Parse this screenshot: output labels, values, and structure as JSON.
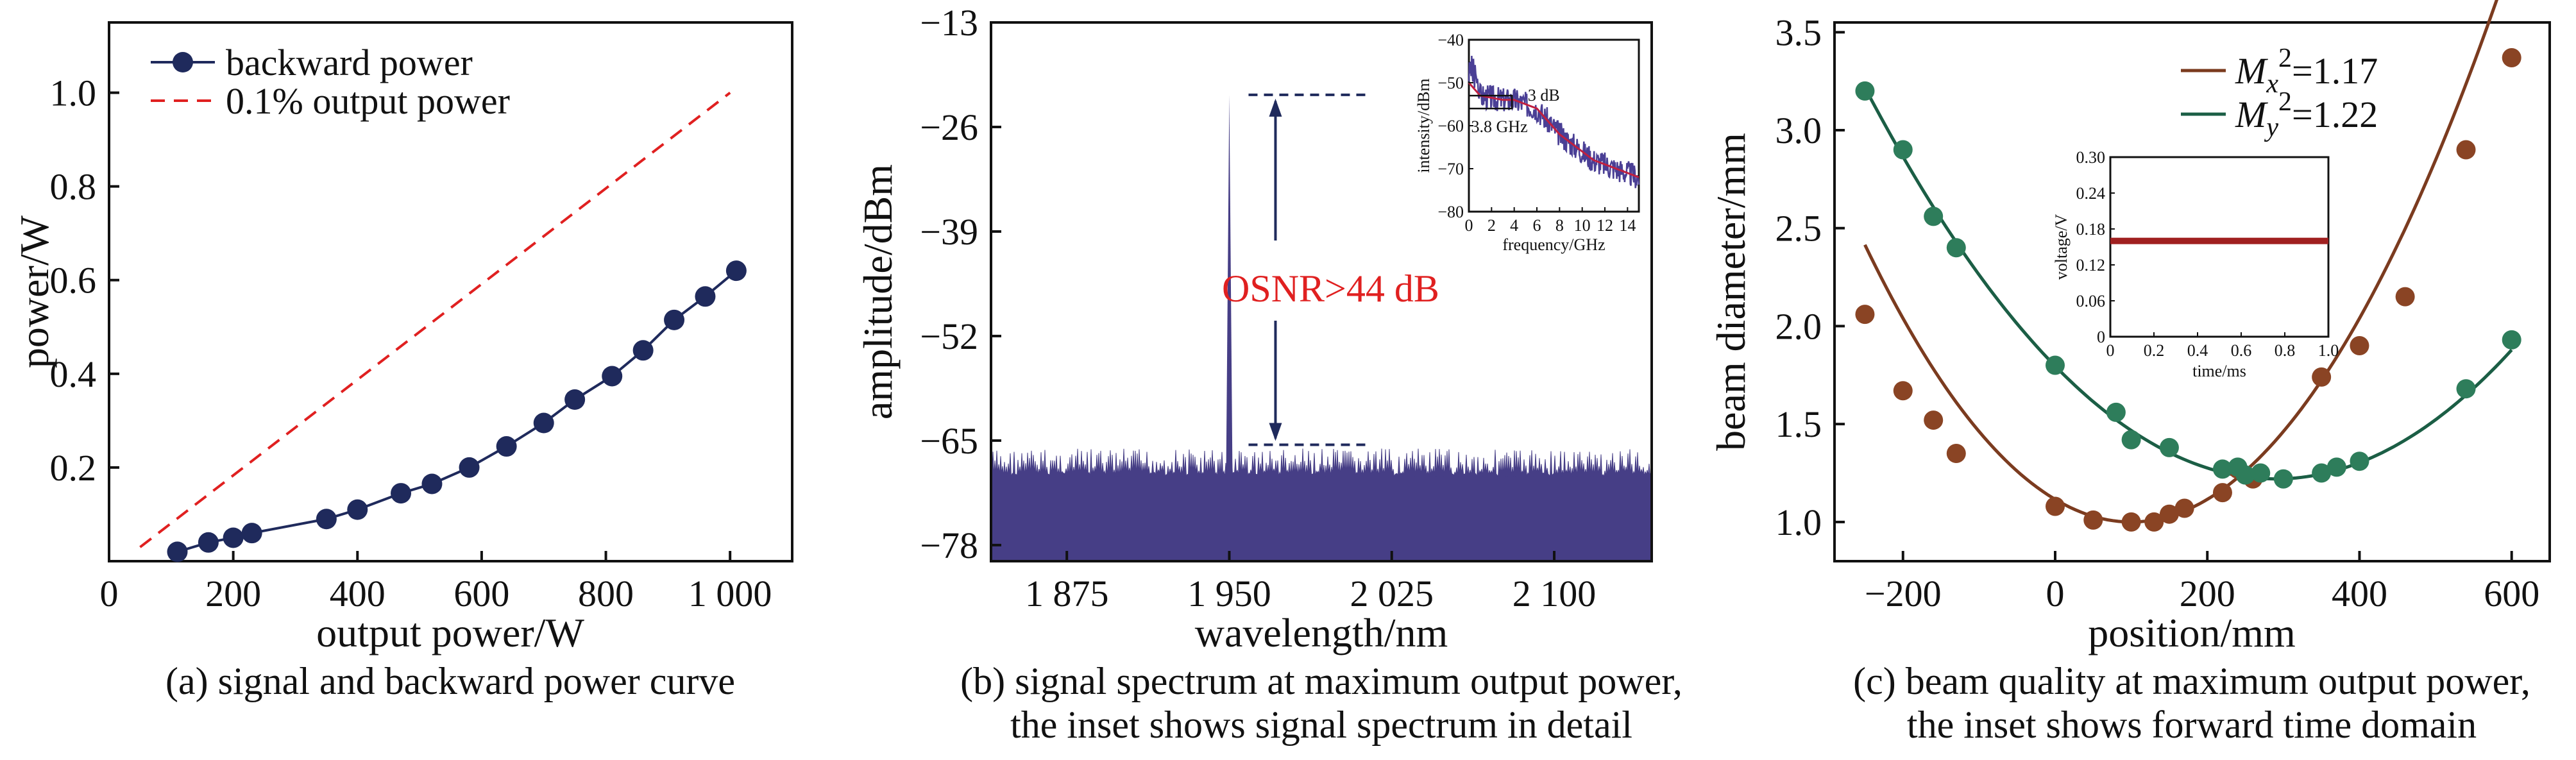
{
  "chart_data": [
    {
      "type": "line",
      "caption": "(a) signal and backward power curve",
      "xlabel": "output power/W",
      "ylabel": "power/W",
      "xlim": [
        0,
        1100
      ],
      "ylim": [
        0,
        1.15
      ],
      "xticks": [
        0,
        200,
        400,
        600,
        800,
        1000
      ],
      "xtick_labels": [
        "0",
        "200",
        "400",
        "600",
        "800",
        "1 000"
      ],
      "yticks": [
        0.2,
        0.4,
        0.6,
        0.8,
        1.0
      ],
      "ytick_labels": [
        "0.2",
        "0.4",
        "0.6",
        "0.8",
        "1.0"
      ],
      "legend_position": "top-left",
      "series": [
        {
          "name": "backward power",
          "style": "line-marker",
          "color": "#1f2a5c",
          "x": [
            110,
            160,
            200,
            230,
            350,
            400,
            470,
            520,
            580,
            640,
            700,
            750,
            810,
            860,
            910,
            960,
            1010
          ],
          "y": [
            0.02,
            0.04,
            0.05,
            0.06,
            0.09,
            0.11,
            0.145,
            0.165,
            0.2,
            0.245,
            0.295,
            0.345,
            0.395,
            0.45,
            0.515,
            0.565,
            0.62
          ]
        },
        {
          "name": "0.1% output power",
          "style": "dashed",
          "color": "#e02020",
          "x": [
            50,
            1000
          ],
          "y": [
            0.03,
            1.0
          ]
        }
      ]
    },
    {
      "type": "area",
      "caption_line1": "(b) signal spectrum at maximum output power,",
      "caption_line2": "the inset shows signal spectrum in detail",
      "xlabel": "wavelength/nm",
      "ylabel": "amplitude/dBm",
      "xlim": [
        1840,
        2145
      ],
      "ylim": [
        -80,
        -13
      ],
      "xticks": [
        1875,
        1950,
        2025,
        2100
      ],
      "xtick_labels": [
        "1 875",
        "1 950",
        "2 025",
        "2 100"
      ],
      "yticks": [
        -13,
        -26,
        -39,
        -52,
        -65,
        -78
      ],
      "ytick_labels": [
        "−13",
        "−26",
        "−39",
        "−52",
        "−65",
        "−78"
      ],
      "color": "#463e86",
      "noise_floor_dbm": -69.5,
      "noise_top_dbm": -66,
      "peak": {
        "x": 1950,
        "y": -22
      },
      "annotation": "OSNR>44 dB",
      "annotation_color": "#e02020",
      "inset": {
        "type": "line",
        "xlabel": "frequency/GHz",
        "ylabel": "intensity/dBm",
        "xlim": [
          0,
          15
        ],
        "ylim": [
          -80,
          -40
        ],
        "xticks": [
          0,
          2,
          4,
          6,
          8,
          10,
          12,
          14
        ],
        "yticks": [
          -40,
          -50,
          -60,
          -70,
          -80
        ],
        "ytick_labels": [
          "−40",
          "−50",
          "−60",
          "−70",
          "−80"
        ],
        "annotations": [
          "3 dB",
          "3.8 GHz"
        ],
        "x": [
          0,
          1,
          2,
          3,
          4,
          5,
          6,
          7,
          8,
          9,
          10,
          11,
          12,
          13,
          14,
          15
        ],
        "y": [
          -50,
          -53,
          -53.5,
          -54,
          -54,
          -55,
          -56,
          -59,
          -62,
          -64,
          -66,
          -68,
          -69,
          -70,
          -71,
          -72
        ]
      }
    },
    {
      "type": "scatter",
      "caption_line1": "(c) beam quality at maximum output power,",
      "caption_line2": "the inset shows forward time domain",
      "xlabel": "position/mm",
      "ylabel": "beam diameter/mm",
      "xlim": [
        -290,
        650
      ],
      "ylim": [
        0.8,
        3.55
      ],
      "xticks": [
        -200,
        0,
        200,
        400,
        600
      ],
      "xtick_labels": [
        "−200",
        "0",
        "200",
        "400",
        "600"
      ],
      "yticks": [
        1.0,
        1.5,
        2.0,
        2.5,
        3.0,
        3.5
      ],
      "ytick_labels": [
        "1.0",
        "1.5",
        "2.0",
        "2.5",
        "3.0",
        "3.5"
      ],
      "legend_position": "top-right",
      "series": [
        {
          "name_base": "M",
          "name_sub": "x",
          "name_sup": "2",
          "name_value": "=1.17",
          "color": "#7b3b1f",
          "marker_color": "#8a4424",
          "x": [
            -250,
            -200,
            -160,
            -130,
            0,
            50,
            100,
            130,
            150,
            170,
            220,
            240,
            260,
            350,
            400,
            460,
            540,
            600
          ],
          "y": [
            2.06,
            1.67,
            1.52,
            1.35,
            1.08,
            1.01,
            1.0,
            1.0,
            1.04,
            1.07,
            1.15,
            1.27,
            1.22,
            1.74,
            1.9,
            2.15,
            2.9,
            3.37
          ],
          "fit": {
            "vertex_x": 100,
            "vertex_y": 1.0,
            "a": 1.155e-05
          }
        },
        {
          "name_base": "M",
          "name_sub": "y",
          "name_sup": "2",
          "name_value": "=1.22",
          "color": "#1b5e45",
          "marker_color": "#2e7d5b",
          "x": [
            -250,
            -200,
            -160,
            -130,
            0,
            80,
            100,
            150,
            220,
            240,
            250,
            270,
            300,
            350,
            370,
            400,
            540,
            600
          ],
          "y": [
            3.2,
            2.9,
            2.56,
            2.4,
            1.8,
            1.56,
            1.42,
            1.38,
            1.27,
            1.28,
            1.24,
            1.25,
            1.22,
            1.25,
            1.28,
            1.31,
            1.68,
            1.93
          ],
          "fit": {
            "vertex_x": 290,
            "vertex_y": 1.22,
            "a": 6.85e-06
          }
        }
      ],
      "inset": {
        "type": "line",
        "xlabel": "time/ms",
        "ylabel": "voltage/V",
        "xlim": [
          0,
          1.0
        ],
        "ylim": [
          0,
          0.3
        ],
        "xticks": [
          0,
          0.2,
          0.4,
          0.6,
          0.8,
          1.0
        ],
        "xtick_labels": [
          "0",
          "0.2",
          "0.4",
          "0.6",
          "0.8",
          "1.0"
        ],
        "yticks": [
          0,
          0.06,
          0.12,
          0.18,
          0.24,
          0.3
        ],
        "ytick_labels": [
          "0",
          "0.06",
          "0.12",
          "0.18",
          "0.24",
          "0.30"
        ],
        "color": "#a02020",
        "level": 0.16
      }
    }
  ]
}
